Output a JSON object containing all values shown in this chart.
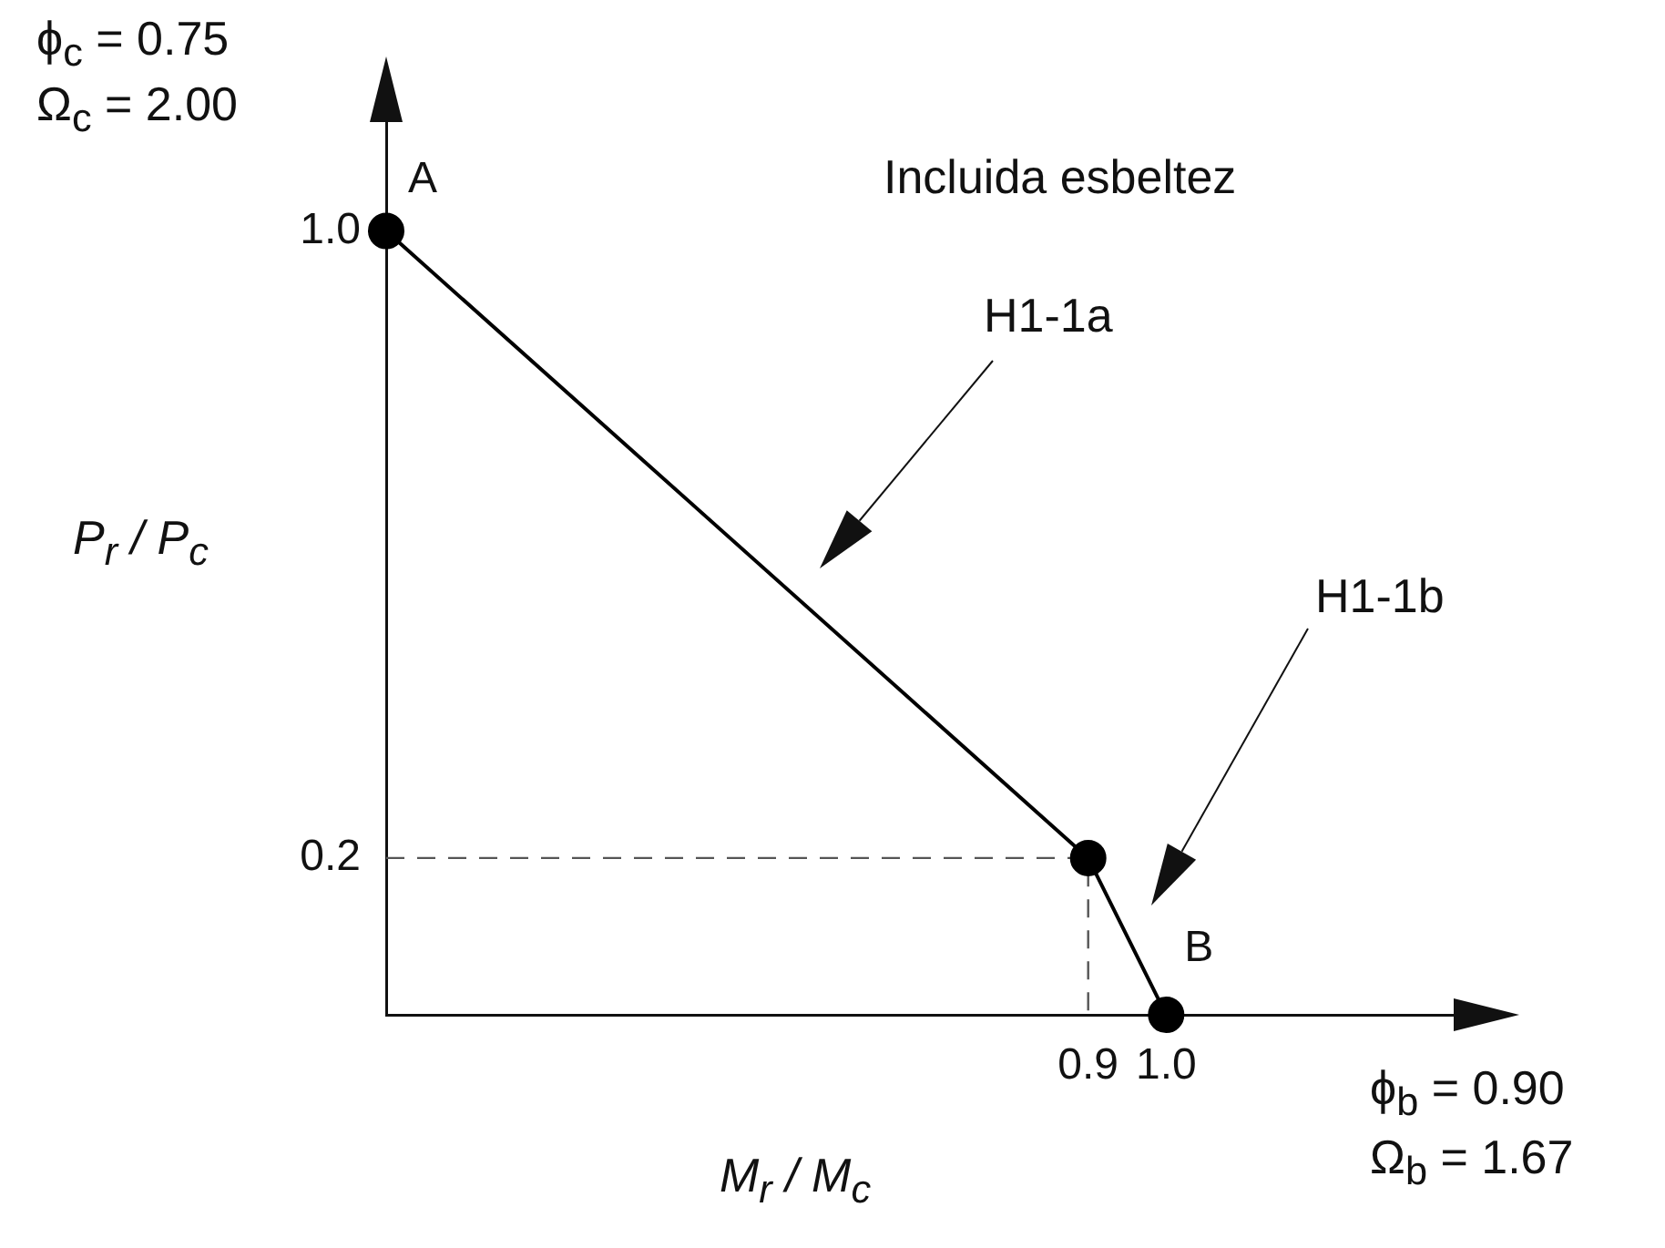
{
  "chart_data": {
    "type": "line",
    "xlabel": "M$_{r}$ / M$_{c}$",
    "ylabel": "P$_{r}$ / P$_{c}$",
    "xlim": [
      0,
      1.42
    ],
    "ylim": [
      0,
      1.19
    ],
    "xticks": [
      0.9,
      {
        "value": 1,
        "label": "1.0"
      }
    ],
    "yticks": [
      0.2,
      {
        "value": 1,
        "label": "1.0"
      }
    ],
    "grid": false,
    "legend": false,
    "series": [
      {
        "x": [
          0,
          0.9,
          1
        ],
        "values": [
          1,
          0.2,
          0
        ],
        "color": "#000000",
        "marker": "circle",
        "line_style": "solid"
      },
      {
        "x": [
          0,
          0.9,
          0.9
        ],
        "values": [
          0.2,
          0.2,
          0
        ],
        "color": "#555555",
        "marker": "none",
        "line_style": "dashed"
      }
    ],
    "annotations": [
      "ϕ$_{c}$ = 0.75",
      "Ω$_{c}$ = 2.00",
      "ϕ$_{b}$ = 0.90",
      "Ω$_{b}$ = 1.67",
      "Incluida esbeltez",
      {
        "text": "A",
        "x": 0,
        "y": 1
      },
      {
        "text": "B",
        "x": 1,
        "y": 0
      },
      "H1-1a",
      "H1-1b"
    ]
  }
}
